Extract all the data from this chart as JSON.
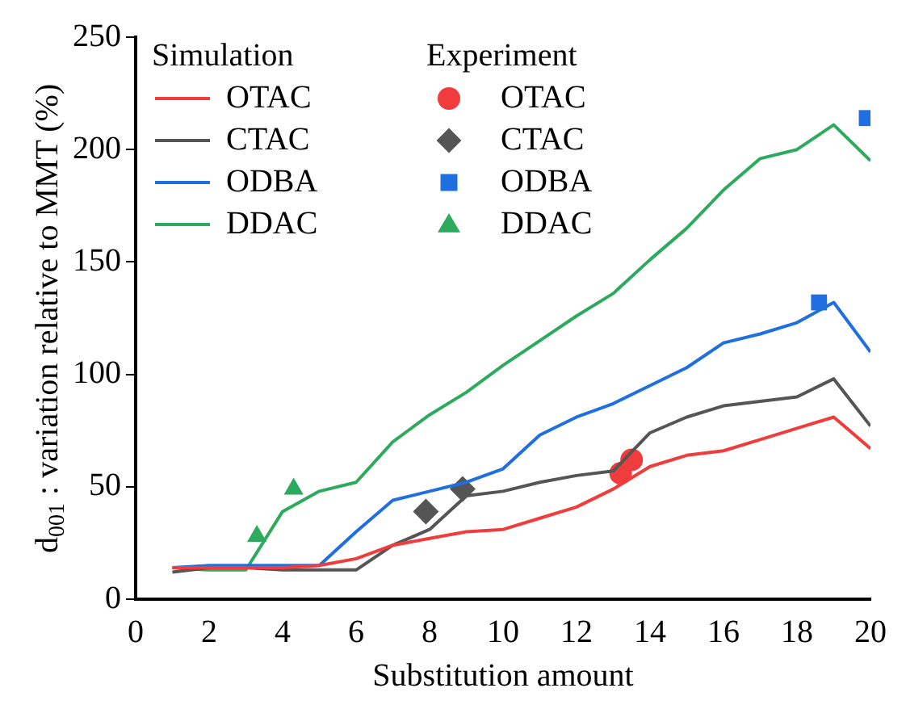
{
  "chart_data": {
    "type": "line",
    "xlabel": "Substitution amount",
    "ylabel": "d$_{001}$ : variation relative to MMT (%)",
    "xlim": [
      0,
      20
    ],
    "xticks": [
      0,
      2,
      4,
      6,
      8,
      10,
      12,
      14,
      16,
      18,
      20
    ],
    "ylim": [
      0,
      250
    ],
    "yticks": [
      0,
      50,
      100,
      150,
      200,
      250
    ],
    "grid": false,
    "legend": "top left",
    "annotations": [
      "Simulation",
      "Experiment"
    ],
    "x": [
      1,
      2,
      3,
      4,
      5,
      6,
      7,
      8,
      9,
      10,
      11,
      12,
      13,
      14,
      15,
      16,
      17,
      18,
      19,
      20
    ],
    "series": [
      {
        "name": "OTAC",
        "marker": "none",
        "color": "#f03c3c",
        "values": [
          14,
          14,
          14,
          14,
          15,
          18,
          24,
          27,
          30,
          31,
          36,
          41,
          49,
          59,
          64,
          66,
          71,
          76,
          81,
          67
        ]
      },
      {
        "name": "CTAC",
        "marker": "none",
        "color": "#555555",
        "values": [
          12,
          14,
          14,
          13,
          13,
          13,
          24,
          31,
          46,
          48,
          52,
          55,
          57,
          74,
          81,
          86,
          88,
          90,
          98,
          77
        ]
      },
      {
        "name": "ODBA",
        "marker": "none",
        "color": "#1f6fe0",
        "values": [
          14,
          15,
          15,
          15,
          15,
          30,
          44,
          48,
          52,
          58,
          73,
          81,
          87,
          95,
          103,
          114,
          118,
          123,
          132,
          110
        ]
      },
      {
        "name": "DDAC",
        "marker": "none",
        "color": "#2eaa5e",
        "values": [
          14,
          13,
          13,
          39,
          48,
          52,
          70,
          82,
          92,
          104,
          115,
          126,
          136,
          151,
          165,
          182,
          196,
          200,
          211,
          195
        ]
      },
      {
        "name": "OTAC",
        "type": "scatter",
        "marker": "circle",
        "color": "#f03c3c",
        "x": [
          13.2,
          13.5
        ],
        "values": [
          56,
          62
        ]
      },
      {
        "name": "CTAC",
        "type": "scatter",
        "marker": "diamond",
        "color": "#555555",
        "x": [
          7.9,
          8.9
        ],
        "values": [
          39,
          49
        ]
      },
      {
        "name": "ODBA",
        "type": "scatter",
        "marker": "square",
        "color": "#1f6fe0",
        "x": [
          18.6,
          19.9
        ],
        "values": [
          132,
          214
        ]
      },
      {
        "name": "DDAC",
        "type": "scatter",
        "marker": "triangle",
        "color": "#2eaa5e",
        "x": [
          3.3,
          4.3
        ],
        "values": [
          28,
          49
        ]
      }
    ]
  }
}
